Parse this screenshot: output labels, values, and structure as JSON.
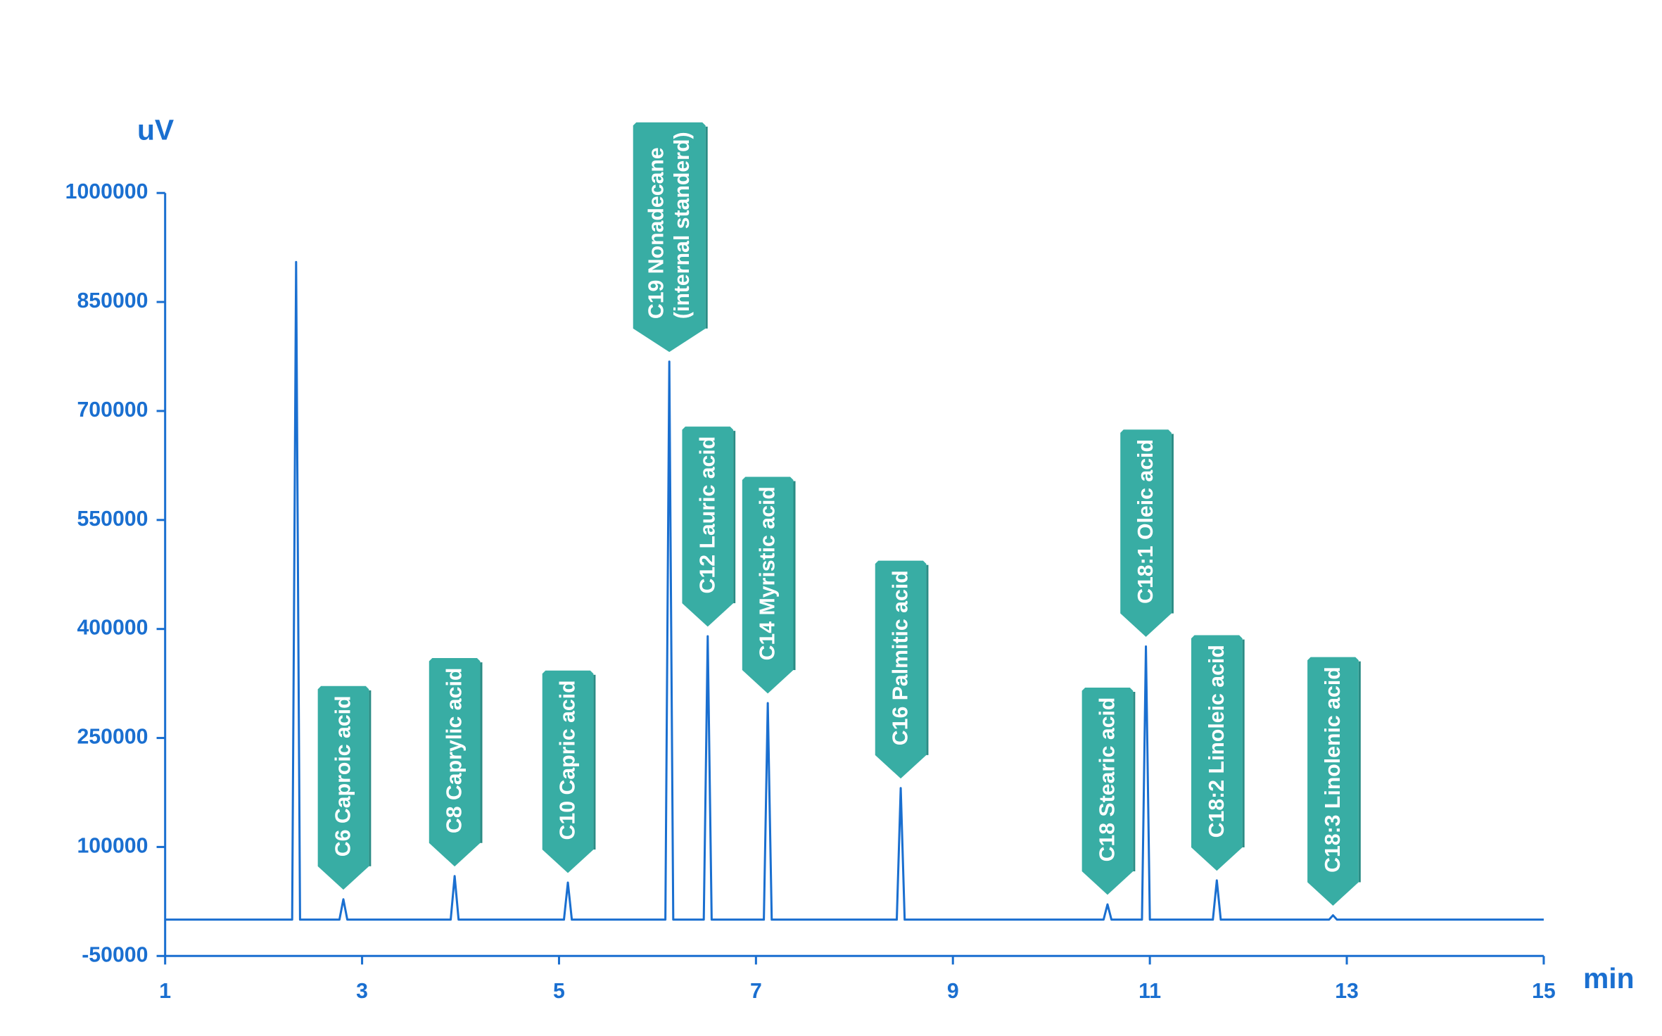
{
  "chart_data": {
    "type": "line",
    "y_axis_label": "uV",
    "x_axis_label": "min",
    "xlim": [
      1,
      15
    ],
    "xticks": [
      1,
      3,
      5,
      7,
      9,
      11,
      13,
      15
    ],
    "ylim": [
      -50000,
      1000000
    ],
    "yticks": [
      -50000,
      100000,
      250000,
      400000,
      550000,
      700000,
      850000,
      1000000
    ],
    "series": [
      {
        "color": "#1a6fd0",
        "x": [
          1,
          2.29,
          2.33,
          2.37,
          2.77,
          2.81,
          2.85,
          3.9,
          3.94,
          3.98,
          5.05,
          5.09,
          5.13,
          6.08,
          6.12,
          6.16,
          6.47,
          6.51,
          6.55,
          7.08,
          7.12,
          7.16,
          8.43,
          8.47,
          8.51,
          10.53,
          10.57,
          10.61,
          10.92,
          10.96,
          11.0,
          11.64,
          11.68,
          11.72,
          12.82,
          12.86,
          12.9,
          15
        ],
        "values": [
          0,
          0,
          905000,
          0,
          0,
          28000,
          0,
          0,
          60000,
          0,
          0,
          51000,
          0,
          0,
          768000,
          0,
          0,
          390000,
          0,
          0,
          298000,
          0,
          0,
          181000,
          0,
          0,
          21000,
          0,
          0,
          376000,
          0,
          0,
          54000,
          0,
          0,
          6000,
          0,
          0
        ]
      }
    ],
    "annotation_color": "#38ada4",
    "annotations": [
      {
        "lines": [
          "C6 Caproic acid"
        ],
        "x": 2.81,
        "y": 28000
      },
      {
        "lines": [
          "C8 Caprylic acid"
        ],
        "x": 3.94,
        "y": 60000
      },
      {
        "lines": [
          "C10 Capric acid"
        ],
        "x": 5.09,
        "y": 51000
      },
      {
        "lines": [
          "C19  Nonadecane",
          "(internal standerd)"
        ],
        "x": 6.12,
        "y": 768000
      },
      {
        "lines": [
          "C12 Lauric acid"
        ],
        "x": 6.51,
        "y": 390000
      },
      {
        "lines": [
          "C14 Myristic acid"
        ],
        "x": 7.12,
        "y": 298000
      },
      {
        "lines": [
          "C16 Palmitic acid"
        ],
        "x": 8.47,
        "y": 181000
      },
      {
        "lines": [
          "C18 Stearic acid"
        ],
        "x": 10.57,
        "y": 21000
      },
      {
        "lines": [
          "C18:1 Oleic acid"
        ],
        "x": 10.96,
        "y": 376000
      },
      {
        "lines": [
          "C18:2 Linoleic acid"
        ],
        "x": 11.68,
        "y": 54000
      },
      {
        "lines": [
          "C18:3 Linolenic acid"
        ],
        "x": 12.86,
        "y": 6000
      }
    ]
  }
}
